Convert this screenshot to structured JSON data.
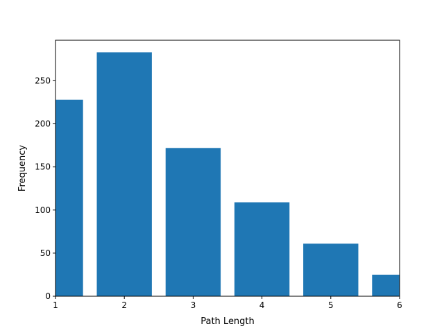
{
  "chart_data": {
    "type": "bar",
    "title": "",
    "xlabel": "Path Length",
    "ylabel": "Frequency",
    "xlim": [
      1,
      6
    ],
    "ylim": [
      0,
      297
    ],
    "bar_width": 0.8,
    "bar_color": "#1f77b4",
    "grid": false,
    "legend": "none",
    "x": [
      1,
      2,
      3,
      4,
      5,
      6
    ],
    "values": [
      228,
      283,
      172,
      109,
      61,
      25
    ],
    "xticks": [
      1,
      2,
      3,
      4,
      5,
      6
    ],
    "xtick_labels": [
      "1",
      "2",
      "3",
      "4",
      "5",
      "6"
    ],
    "yticks": [
      0,
      50,
      100,
      150,
      200,
      250
    ],
    "ytick_labels": [
      "0",
      "50",
      "100",
      "150",
      "200",
      "250"
    ]
  }
}
